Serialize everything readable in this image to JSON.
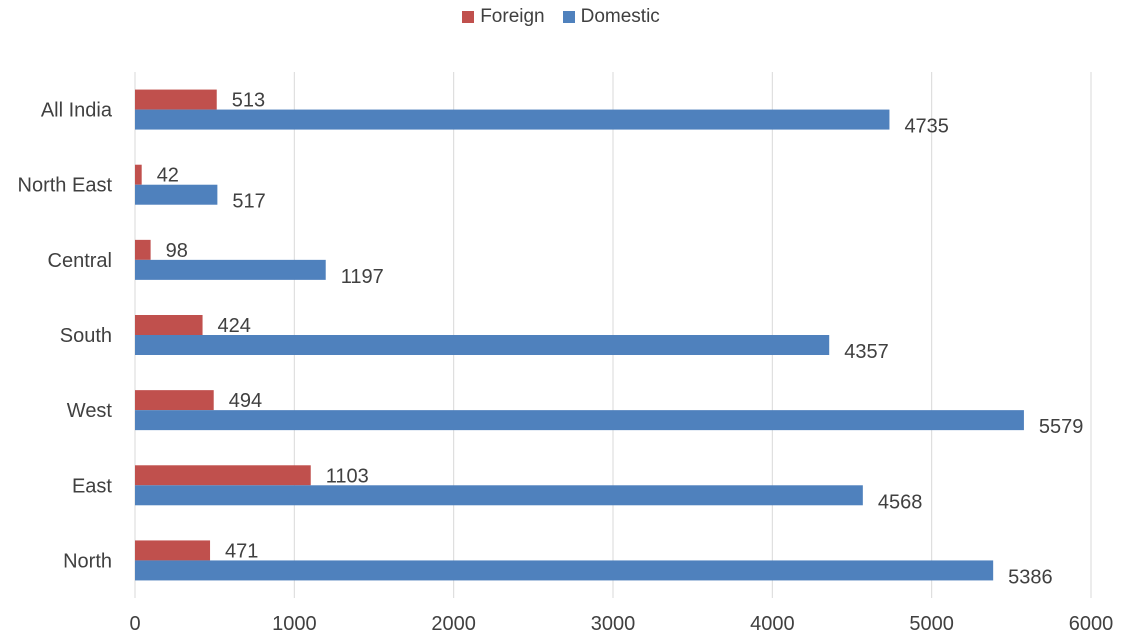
{
  "chart_data": {
    "type": "bar",
    "orientation": "horizontal",
    "categories": [
      "North",
      "East",
      "West",
      "South",
      "Central",
      "North East",
      "All India"
    ],
    "series": [
      {
        "name": "Foreign",
        "color": "#C0504D",
        "values": [
          471,
          1103,
          494,
          424,
          98,
          42,
          513
        ]
      },
      {
        "name": "Domestic",
        "color": "#4F81BD",
        "values": [
          5386,
          4568,
          5579,
          4357,
          1197,
          517,
          4735
        ]
      }
    ],
    "xlim": [
      0,
      6000
    ],
    "xticks": [
      "0",
      "1000",
      "2000",
      "3000",
      "4000",
      "5000",
      "6000"
    ],
    "grid": true,
    "legend_position": "top-center",
    "data_labels": true
  }
}
